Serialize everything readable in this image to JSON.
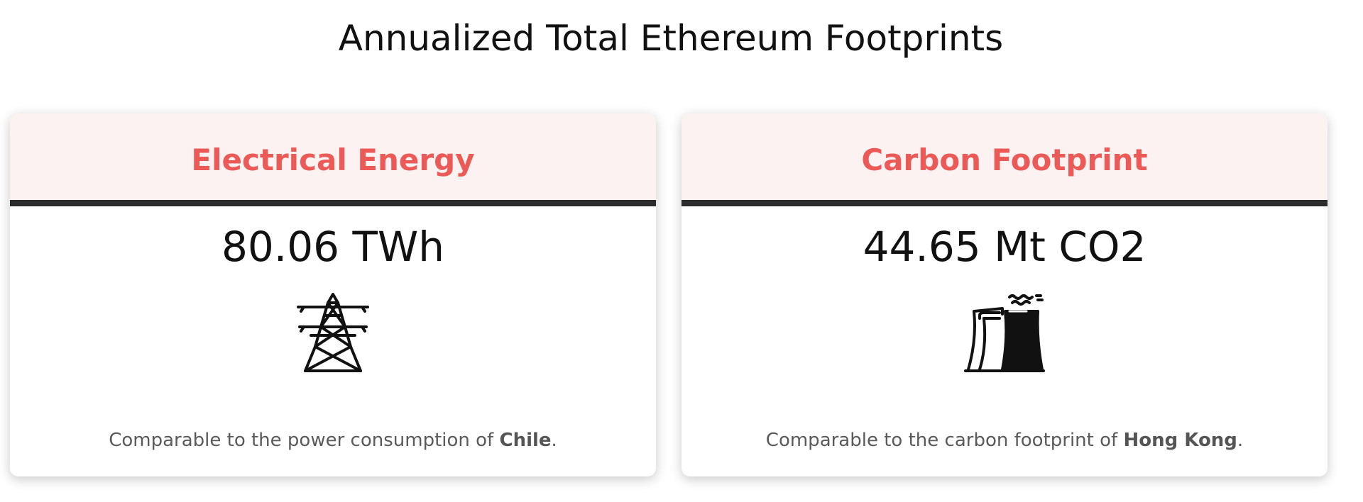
{
  "page": {
    "title": "Annualized Total Ethereum Footprints"
  },
  "cards": [
    {
      "header": "Electrical Energy",
      "value": "80.06 TWh",
      "icon": "power-tower-icon",
      "comparison_prefix": "Comparable to the power consumption of ",
      "comparison_entity": "Chile",
      "comparison_suffix": "."
    },
    {
      "header": "Carbon Footprint",
      "value": "44.65 Mt CO2",
      "icon": "power-plant-icon",
      "comparison_prefix": "Comparable to the carbon footprint of ",
      "comparison_entity": "Hong Kong",
      "comparison_suffix": "."
    }
  ],
  "colors": {
    "header_text": "#eb5a56",
    "header_bg": "#fcf2f1",
    "divider": "#2b2b2b"
  }
}
